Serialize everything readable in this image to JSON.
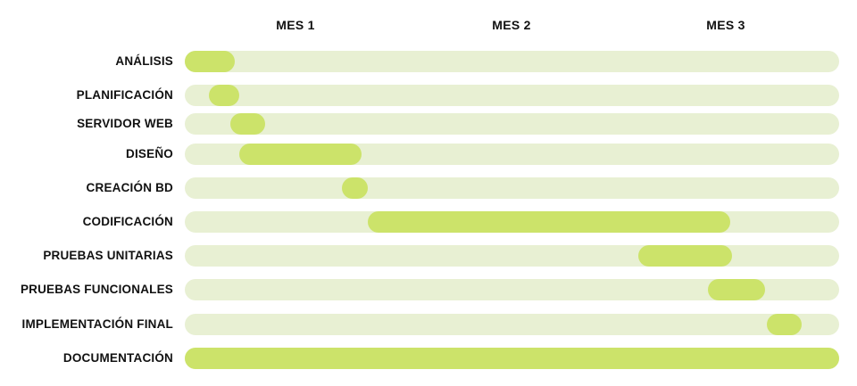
{
  "chart_data": {
    "type": "gantt",
    "unit": "month",
    "xlim": [
      0,
      3
    ],
    "months": [
      {
        "label": "MES 1",
        "center": 0.5
      },
      {
        "label": "MES 2",
        "center": 1.5
      },
      {
        "label": "MES 3",
        "center": 2.5
      }
    ],
    "tasks": [
      {
        "label": "ANÁLISIS",
        "start": 0.0,
        "end": 0.23
      },
      {
        "label": "PLANIFICACIÓN",
        "start": 0.11,
        "end": 0.25
      },
      {
        "label": "SERVIDOR WEB",
        "start": 0.21,
        "end": 0.37
      },
      {
        "label": "DISEÑO",
        "start": 0.25,
        "end": 0.81
      },
      {
        "label": "CREACIÓN BD",
        "start": 0.72,
        "end": 0.84
      },
      {
        "label": "CODIFICACIÓN",
        "start": 0.84,
        "end": 2.5
      },
      {
        "label": "PRUEBAS UNITARIAS",
        "start": 2.08,
        "end": 2.51
      },
      {
        "label": "PRUEBAS FUNCIONALES",
        "start": 2.4,
        "end": 2.66
      },
      {
        "label": "IMPLEMENTACIÓN FINAL",
        "start": 2.67,
        "end": 2.83
      },
      {
        "label": "DOCUMENTACIÓN",
        "start": 0.0,
        "end": 3.0
      }
    ],
    "colors": {
      "bar": "#cce36a",
      "track": "#e8f0d3",
      "text": "#111111"
    },
    "grid": false,
    "legend": "none"
  }
}
